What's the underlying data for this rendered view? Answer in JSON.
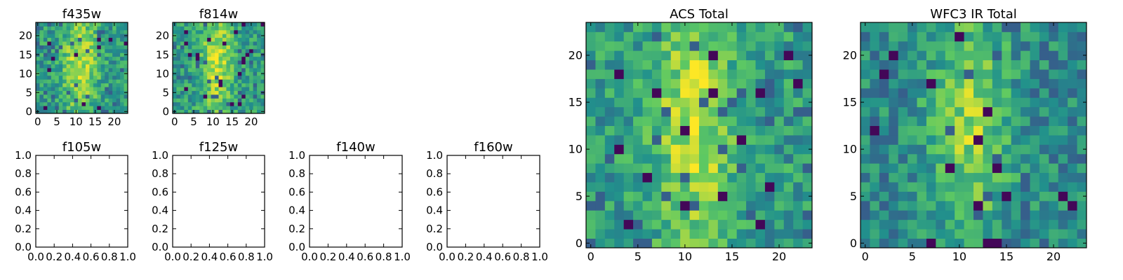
{
  "figure": {
    "background": "#ffffff",
    "colormap": "viridis",
    "colormap_stops": [
      "#440154",
      "#3b528b",
      "#21918c",
      "#5ec962",
      "#fde725"
    ]
  },
  "chart_data": [
    {
      "id": "f435w",
      "type": "heatmap",
      "title": "f435w",
      "grid_size": 24,
      "xlim": [
        -0.5,
        23.5
      ],
      "ylim": [
        -0.5,
        23.5
      ],
      "xticks": [
        0,
        5,
        10,
        15,
        20
      ],
      "yticks": [
        0,
        5,
        10,
        15,
        20
      ],
      "xlabel": "",
      "ylabel": "",
      "grid": false
    },
    {
      "id": "f814w",
      "type": "heatmap",
      "title": "f814w",
      "grid_size": 24,
      "xlim": [
        -0.5,
        23.5
      ],
      "ylim": [
        -0.5,
        23.5
      ],
      "xticks": [
        0,
        5,
        10,
        15,
        20
      ],
      "yticks": [
        0,
        5,
        10,
        15,
        20
      ],
      "xlabel": "",
      "ylabel": "",
      "grid": false
    },
    {
      "id": "f105w",
      "type": "empty",
      "title": "f105w",
      "xlim": [
        0.0,
        1.0
      ],
      "ylim": [
        0.0,
        1.0
      ],
      "xticks": [
        "0.0",
        "0.2",
        "0.4",
        "0.6",
        "0.8",
        "1.0"
      ],
      "yticks": [
        "0.0",
        "0.2",
        "0.4",
        "0.6",
        "0.8",
        "1.0"
      ]
    },
    {
      "id": "f125w",
      "type": "empty",
      "title": "f125w",
      "xlim": [
        0.0,
        1.0
      ],
      "ylim": [
        0.0,
        1.0
      ],
      "xticks": [
        "0.0",
        "0.2",
        "0.4",
        "0.6",
        "0.8",
        "1.0"
      ],
      "yticks": [
        "0.0",
        "0.2",
        "0.4",
        "0.6",
        "0.8",
        "1.0"
      ]
    },
    {
      "id": "f140w",
      "type": "empty",
      "title": "f140w",
      "xlim": [
        0.0,
        1.0
      ],
      "ylim": [
        0.0,
        1.0
      ],
      "xticks": [
        "0.0",
        "0.2",
        "0.4",
        "0.6",
        "0.8",
        "1.0"
      ],
      "yticks": [
        "0.0",
        "0.2",
        "0.4",
        "0.6",
        "0.8",
        "1.0"
      ]
    },
    {
      "id": "f160w",
      "type": "empty",
      "title": "f160w",
      "xlim": [
        0.0,
        1.0
      ],
      "ylim": [
        0.0,
        1.0
      ],
      "xticks": [
        "0.0",
        "0.2",
        "0.4",
        "0.6",
        "0.8",
        "1.0"
      ],
      "yticks": [
        "0.0",
        "0.2",
        "0.4",
        "0.6",
        "0.8",
        "1.0"
      ]
    },
    {
      "id": "acs_total",
      "type": "heatmap",
      "title": "ACS Total",
      "grid_size": 24,
      "xlim": [
        -0.5,
        23.5
      ],
      "ylim": [
        -0.5,
        23.5
      ],
      "xticks": [
        0,
        5,
        10,
        15,
        20
      ],
      "yticks": [
        0,
        5,
        10,
        15,
        20
      ],
      "xlabel": "",
      "ylabel": "",
      "grid": false
    },
    {
      "id": "wfc3_ir_total",
      "type": "heatmap",
      "title": "WFC3 IR Total",
      "grid_size": 24,
      "xlim": [
        -0.5,
        23.5
      ],
      "ylim": [
        -0.5,
        23.5
      ],
      "xticks": [
        0,
        5,
        10,
        15,
        20
      ],
      "yticks": [
        0,
        5,
        10,
        15,
        20
      ],
      "xlabel": "",
      "ylabel": "",
      "grid": false
    }
  ]
}
